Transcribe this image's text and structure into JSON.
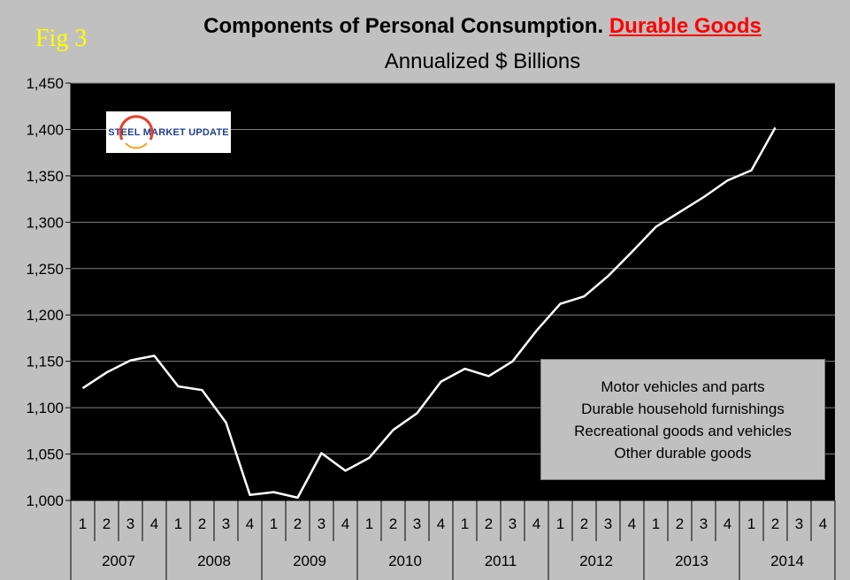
{
  "figure_label": "Fig 3",
  "chart_data": {
    "type": "line",
    "title": "Components of Personal Consumption.",
    "title_highlight": "Durable Goods",
    "subtitle": "Annualized $ Billions",
    "xlabel": "",
    "ylabel": "",
    "ylim": [
      1000,
      1450
    ],
    "yticks": [
      1000,
      1050,
      1100,
      1150,
      1200,
      1250,
      1300,
      1350,
      1400,
      1450
    ],
    "ytick_labels": [
      "1,000",
      "1,050",
      "1,100",
      "1,150",
      "1,200",
      "1,250",
      "1,300",
      "1,350",
      "1,400",
      "1,450"
    ],
    "quarter_labels": [
      "1",
      "2",
      "3",
      "4"
    ],
    "years": [
      "2007",
      "2008",
      "2009",
      "2010",
      "2011",
      "2012",
      "2013",
      "2014"
    ],
    "series": [
      {
        "name": "Durable Goods",
        "color": "#ffffff",
        "values": [
          1121,
          1138,
          1151,
          1156,
          1123,
          1119,
          1084,
          1006,
          1009,
          1003,
          1051,
          1032,
          1046,
          1076,
          1094,
          1128,
          1142,
          1134,
          1150,
          1183,
          1212,
          1220,
          1242,
          1268,
          1295,
          1311,
          1327,
          1345,
          1356,
          1402
        ]
      }
    ],
    "legend": [
      "Motor vehicles and parts",
      "Durable household furnishings",
      "Recreational goods and vehicles",
      "Other durable goods"
    ],
    "grid": true,
    "plot_background": "#000000",
    "page_background": "#c0c0c0"
  },
  "logo": {
    "text": "STEEL MARKET UPDATE"
  },
  "colors": {
    "title_highlight": "#ff0000",
    "fig_label": "#ffff00"
  }
}
